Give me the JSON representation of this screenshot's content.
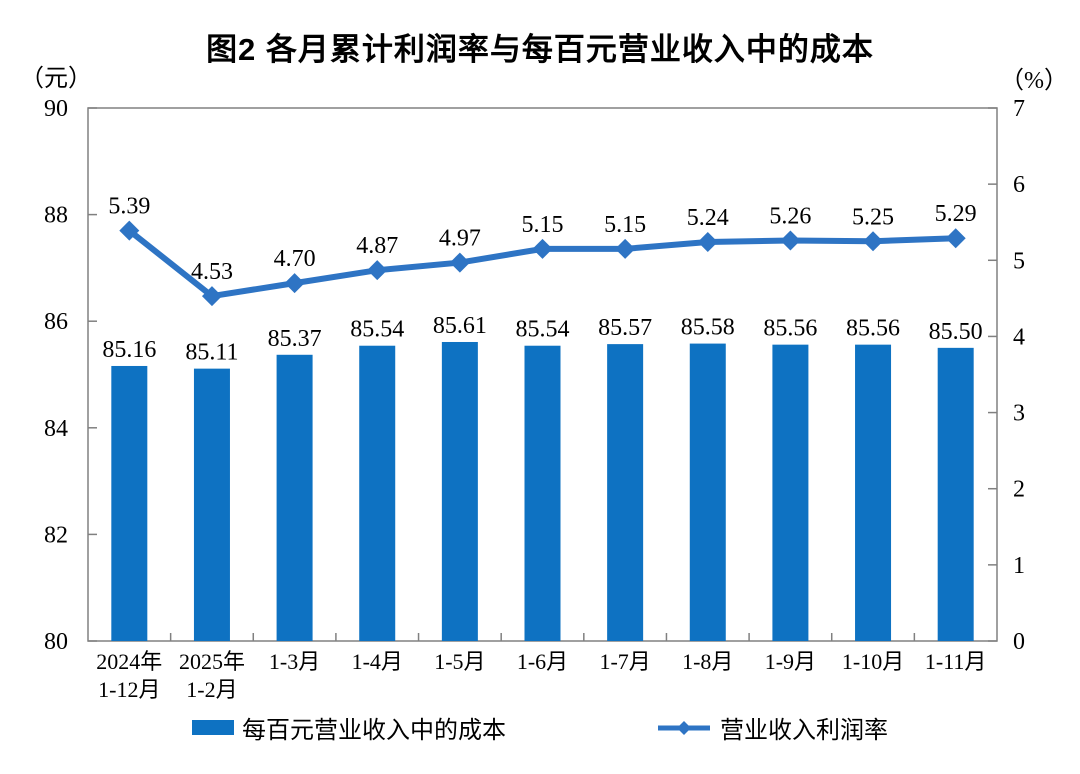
{
  "chart_data": {
    "type": "bar",
    "combo": true,
    "title": "图2 各月累计利润率与每百元营业收入中的成本",
    "categories": [
      "2024年\n1-12月",
      "2025年\n1-2月",
      "1-3月",
      "1-4月",
      "1-5月",
      "1-6月",
      "1-7月",
      "1-8月",
      "1-9月",
      "1-10月",
      "1-11月"
    ],
    "series": [
      {
        "name": "每百元营业收入中的成本",
        "type": "bar",
        "axis": "left",
        "color": "#0E72C2",
        "values": [
          85.16,
          85.11,
          85.37,
          85.54,
          85.61,
          85.54,
          85.57,
          85.58,
          85.56,
          85.56,
          85.5
        ],
        "labels": [
          "85.16",
          "85.11",
          "85.37",
          "85.54",
          "85.61",
          "85.54",
          "85.57",
          "85.58",
          "85.56",
          "85.56",
          "85.50"
        ]
      },
      {
        "name": "营业收入利润率",
        "type": "line",
        "axis": "right",
        "color": "#2E74C4",
        "marker": "diamond",
        "values": [
          5.39,
          4.53,
          4.7,
          4.87,
          4.97,
          5.15,
          5.15,
          5.24,
          5.26,
          5.25,
          5.29
        ],
        "labels": [
          "5.39",
          "4.53",
          "4.70",
          "4.87",
          "4.97",
          "5.15",
          "5.15",
          "5.24",
          "5.26",
          "5.25",
          "5.29"
        ]
      }
    ],
    "left_axis": {
      "unit": "（元）",
      "min": 80,
      "max": 90,
      "ticks": [
        80,
        82,
        84,
        86,
        88,
        90
      ]
    },
    "right_axis": {
      "unit": "（%）",
      "min": 0,
      "max": 7,
      "ticks": [
        0,
        1,
        2,
        3,
        4,
        5,
        6,
        7
      ]
    },
    "grid": false,
    "legend_position": "bottom",
    "axis_color": "#808080"
  }
}
